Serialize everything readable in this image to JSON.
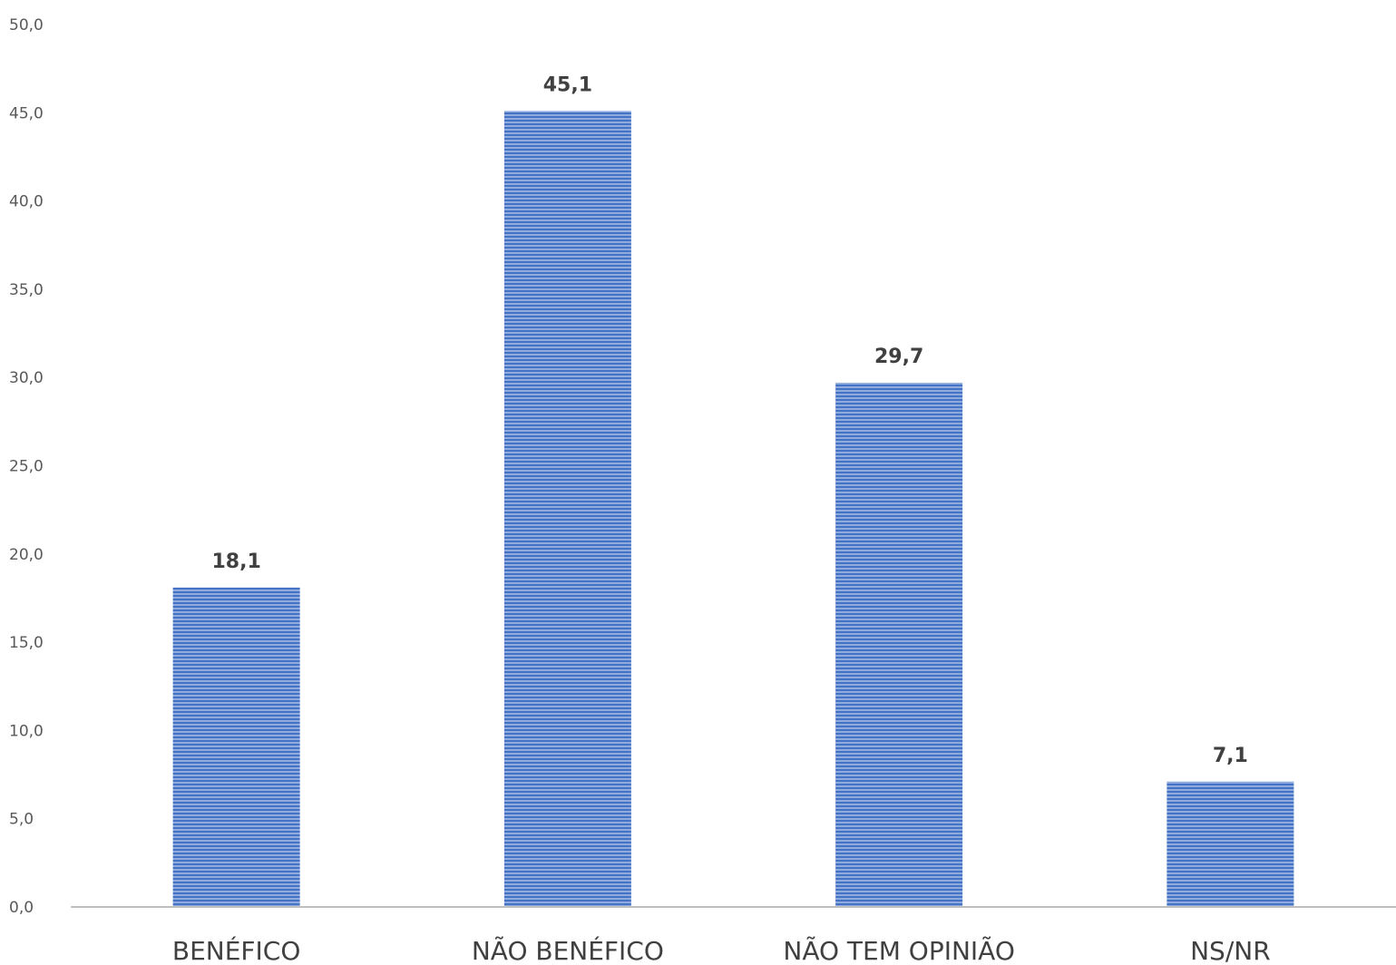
{
  "chart_data": {
    "type": "bar",
    "categories": [
      "BENÉFICO",
      "NÃO BENÉFICO",
      "NÃO TEM OPINIÃO",
      "NS/NR"
    ],
    "values": [
      18.1,
      45.1,
      29.7,
      7.1
    ],
    "value_labels": [
      "18,1",
      "45,1",
      "29,7",
      "7,1"
    ],
    "ylim": [
      0,
      50
    ],
    "yticks": [
      "0,0",
      "5,0",
      "10,0",
      "15,0",
      "20,0",
      "25,0",
      "30,0",
      "35,0",
      "40,0",
      "45,0",
      "50,0"
    ],
    "title": "",
    "xlabel": "",
    "ylabel": "",
    "grid": false,
    "legend": "none",
    "colors": {
      "bar": "#4472C4",
      "bar_stripe": "#8FAADC",
      "axis": "#BFBFBF"
    }
  }
}
